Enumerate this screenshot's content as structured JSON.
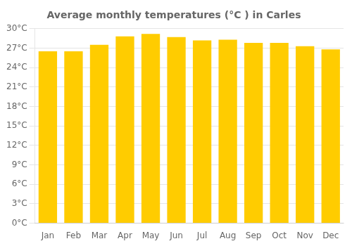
{
  "chart_data": {
    "type": "bar",
    "title": "Average monthly temperatures (°C ) in Carles",
    "categories": [
      "Jan",
      "Feb",
      "Mar",
      "Apr",
      "May",
      "Jun",
      "Jul",
      "Aug",
      "Sep",
      "Oct",
      "Nov",
      "Dec"
    ],
    "values": [
      26.5,
      26.5,
      27.5,
      28.8,
      29.2,
      28.7,
      28.2,
      28.3,
      27.8,
      27.8,
      27.3,
      26.8
    ],
    "color": "#FFCC00",
    "ylim": [
      0,
      30
    ],
    "yticks": [
      {
        "value": 0,
        "label": "0°C"
      },
      {
        "value": 3,
        "label": "3°C"
      },
      {
        "value": 6,
        "label": "6°C"
      },
      {
        "value": 9,
        "label": "9°C"
      },
      {
        "value": 12,
        "label": "12°C"
      },
      {
        "value": 15,
        "label": "15°C"
      },
      {
        "value": 18,
        "label": "18°C"
      },
      {
        "value": 21,
        "label": "21°C"
      },
      {
        "value": 24,
        "label": "24°C"
      },
      {
        "value": 27,
        "label": "27°C"
      },
      {
        "value": 30,
        "label": "30°C"
      }
    ],
    "grid": true
  }
}
